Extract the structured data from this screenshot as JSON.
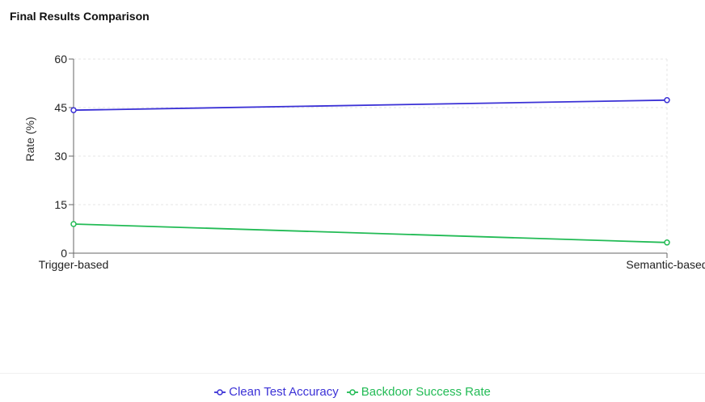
{
  "title": "Final Results Comparison",
  "chart_data": {
    "type": "line",
    "categories": [
      "Trigger-based",
      "Semantic-based"
    ],
    "ylabel": "Rate (%)",
    "xlabel": "",
    "ylim": [
      0,
      60
    ],
    "yticks": [
      0,
      15,
      30,
      45,
      60
    ],
    "grid": true,
    "legend_position": "bottom",
    "series": [
      {
        "name": "Clean Test Accuracy",
        "values": [
          44.2,
          47.3
        ],
        "color": "#3b31d6"
      },
      {
        "name": "Backdoor Success Rate",
        "values": [
          9.0,
          3.3
        ],
        "color": "#22bb55"
      }
    ]
  }
}
